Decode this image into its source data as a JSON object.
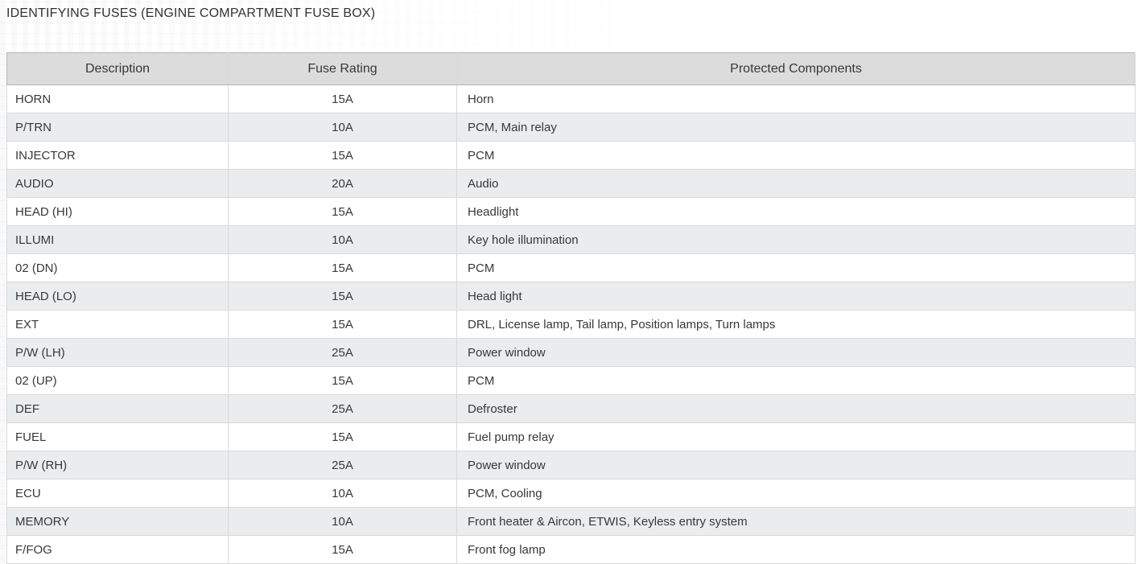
{
  "page": {
    "title": "IDENTIFYING FUSES (ENGINE COMPARTMENT FUSE BOX)"
  },
  "table": {
    "columns": [
      {
        "label": "Description"
      },
      {
        "label": "Fuse Rating"
      },
      {
        "label": "Protected Components"
      }
    ],
    "rows": [
      [
        "HORN",
        "15A",
        "Horn"
      ],
      [
        "P/TRN",
        "10A",
        "PCM, Main relay"
      ],
      [
        "INJECTOR",
        "15A",
        "PCM"
      ],
      [
        "AUDIO",
        "20A",
        "Audio"
      ],
      [
        "HEAD (HI)",
        "15A",
        "Headlight"
      ],
      [
        "ILLUMI",
        "10A",
        "Key hole illumination"
      ],
      [
        "02 (DN)",
        "15A",
        "PCM"
      ],
      [
        "HEAD (LO)",
        "15A",
        "Head light"
      ],
      [
        "EXT",
        "15A",
        "DRL, License lamp, Tail lamp, Position lamps, Turn lamps"
      ],
      [
        "P/W (LH)",
        "25A",
        "Power window"
      ],
      [
        "02 (UP)",
        "15A",
        "PCM"
      ],
      [
        "DEF",
        "25A",
        "Defroster"
      ],
      [
        "FUEL",
        "15A",
        "Fuel pump relay"
      ],
      [
        "P/W (RH)",
        "25A",
        "Power window"
      ],
      [
        "ECU",
        "10A",
        "PCM, Cooling"
      ],
      [
        "MEMORY",
        "10A",
        "Front heater & Aircon, ETWIS, Keyless entry system"
      ],
      [
        "F/FOG",
        "15A",
        "Front fog lamp"
      ]
    ]
  },
  "theme": {
    "header_bg": "#dcdcdc",
    "alt_row_bg": "#ebecee",
    "border_light": "#d9d9d9",
    "border_row": "#cfcfcf",
    "border_header": "#b5b5b5",
    "text_color": "#383838",
    "page_bg": "#ffffff"
  }
}
